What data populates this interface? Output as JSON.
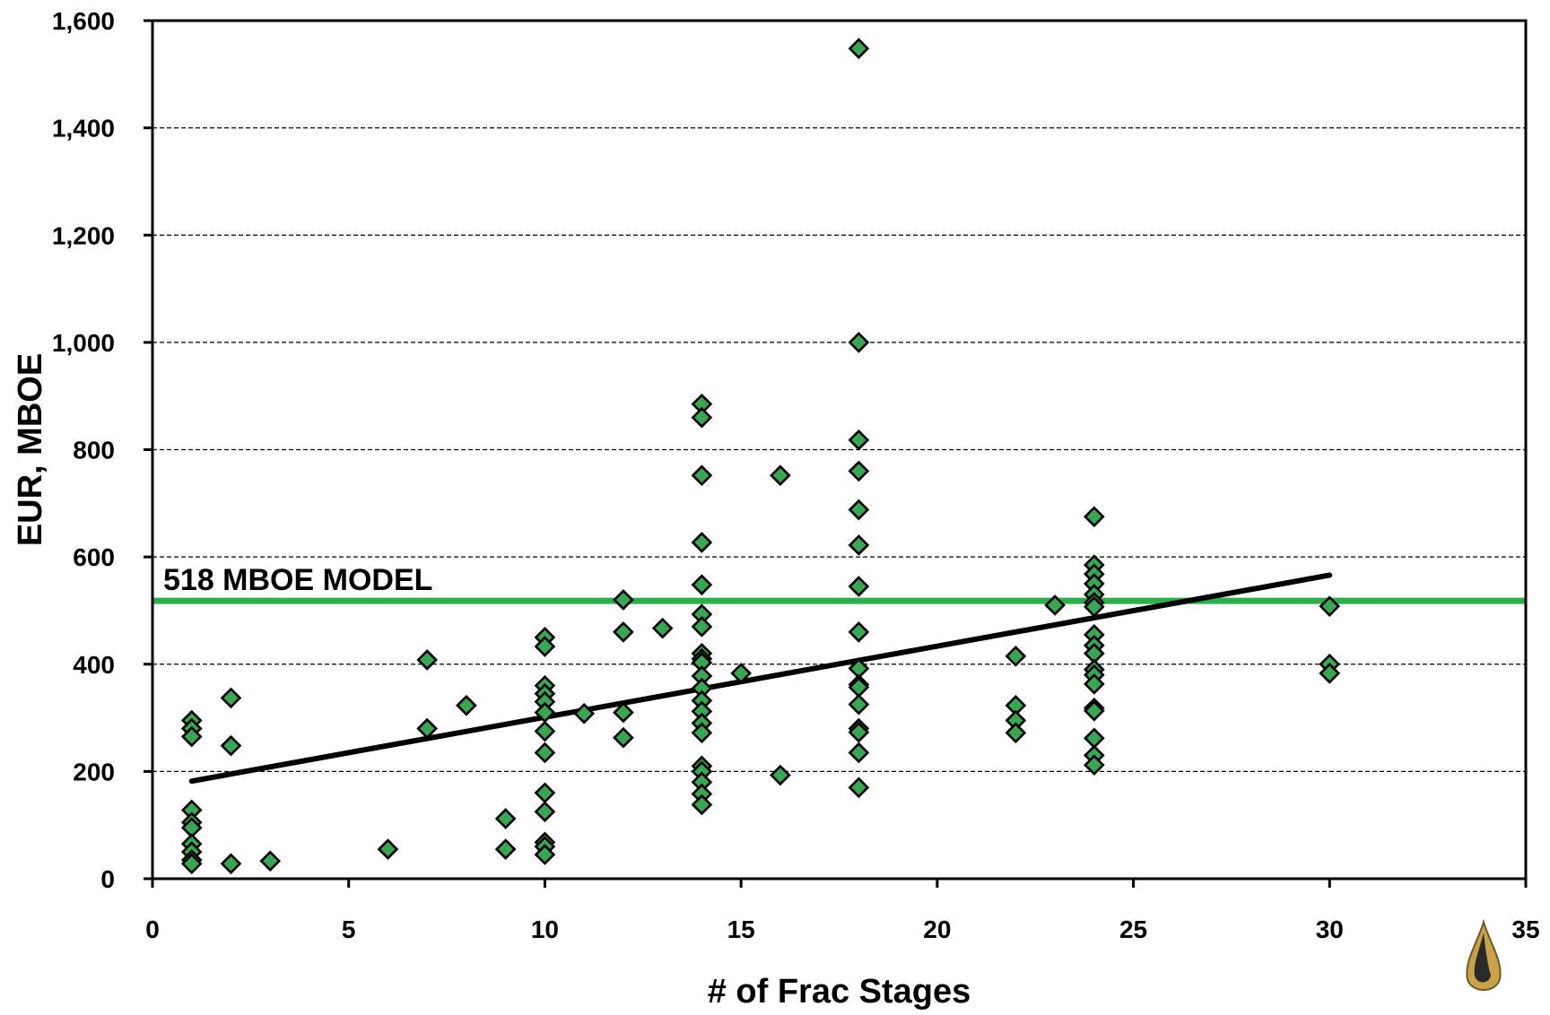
{
  "chart_data": {
    "type": "scatter",
    "title": "",
    "xlabel": "# of Frac Stages",
    "ylabel": "EUR, MBOE",
    "xlim": [
      0,
      35
    ],
    "ylim": [
      0,
      1600
    ],
    "x_ticks": [
      0,
      5,
      10,
      15,
      20,
      25,
      30,
      35
    ],
    "x_tick_labels": [
      "0",
      "5",
      "10",
      "15",
      "20",
      "25",
      "30",
      "35"
    ],
    "y_ticks": [
      0,
      200,
      400,
      600,
      800,
      1000,
      1200,
      1400,
      1600
    ],
    "y_tick_labels": [
      "0",
      "200",
      "400",
      "600",
      "800",
      "1,000",
      "1,200",
      "1,400",
      "1,600"
    ],
    "grid": "horizontal dashed",
    "marker": "diamond",
    "marker_color": "#3aa655",
    "reference_line": {
      "y": 518,
      "label": "518 MBOE MODEL",
      "color": "#2eae4e"
    },
    "trend_line": {
      "x": [
        1,
        30
      ],
      "y": [
        182,
        566
      ],
      "color": "#000000"
    },
    "points": [
      [
        1,
        295
      ],
      [
        1,
        280
      ],
      [
        1,
        265
      ],
      [
        1,
        128
      ],
      [
        1,
        105
      ],
      [
        1,
        95
      ],
      [
        1,
        65
      ],
      [
        1,
        50
      ],
      [
        1,
        35
      ],
      [
        1,
        28
      ],
      [
        2,
        337
      ],
      [
        2,
        248
      ],
      [
        2,
        28
      ],
      [
        3,
        33
      ],
      [
        6,
        55
      ],
      [
        7,
        408
      ],
      [
        7,
        280
      ],
      [
        8,
        323
      ],
      [
        9,
        112
      ],
      [
        9,
        55
      ],
      [
        10,
        450
      ],
      [
        10,
        433
      ],
      [
        10,
        360
      ],
      [
        10,
        345
      ],
      [
        10,
        330
      ],
      [
        10,
        310
      ],
      [
        10,
        275
      ],
      [
        10,
        235
      ],
      [
        10,
        160
      ],
      [
        10,
        125
      ],
      [
        10,
        68
      ],
      [
        10,
        60
      ],
      [
        10,
        45
      ],
      [
        11,
        308
      ],
      [
        12,
        520
      ],
      [
        12,
        460
      ],
      [
        12,
        310
      ],
      [
        12,
        263
      ],
      [
        13,
        467
      ],
      [
        14,
        885
      ],
      [
        14,
        860
      ],
      [
        14,
        752
      ],
      [
        14,
        627
      ],
      [
        14,
        548
      ],
      [
        14,
        493
      ],
      [
        14,
        470
      ],
      [
        14,
        420
      ],
      [
        14,
        410
      ],
      [
        14,
        403
      ],
      [
        14,
        378
      ],
      [
        14,
        355
      ],
      [
        14,
        332
      ],
      [
        14,
        312
      ],
      [
        14,
        290
      ],
      [
        14,
        272
      ],
      [
        14,
        210
      ],
      [
        14,
        200
      ],
      [
        14,
        180
      ],
      [
        14,
        158
      ],
      [
        14,
        138
      ],
      [
        15,
        383
      ],
      [
        16,
        752
      ],
      [
        16,
        193
      ],
      [
        18,
        1548
      ],
      [
        18,
        1000
      ],
      [
        18,
        818
      ],
      [
        18,
        760
      ],
      [
        18,
        688
      ],
      [
        18,
        622
      ],
      [
        18,
        545
      ],
      [
        18,
        460
      ],
      [
        18,
        392
      ],
      [
        18,
        362
      ],
      [
        18,
        357
      ],
      [
        18,
        325
      ],
      [
        18,
        280
      ],
      [
        18,
        273
      ],
      [
        18,
        235
      ],
      [
        18,
        170
      ],
      [
        22,
        415
      ],
      [
        22,
        323
      ],
      [
        22,
        295
      ],
      [
        22,
        272
      ],
      [
        23,
        510
      ],
      [
        24,
        675
      ],
      [
        24,
        585
      ],
      [
        24,
        568
      ],
      [
        24,
        550
      ],
      [
        24,
        530
      ],
      [
        24,
        515
      ],
      [
        24,
        507
      ],
      [
        24,
        455
      ],
      [
        24,
        435
      ],
      [
        24,
        420
      ],
      [
        24,
        390
      ],
      [
        24,
        380
      ],
      [
        24,
        363
      ],
      [
        24,
        318
      ],
      [
        24,
        313
      ],
      [
        24,
        262
      ],
      [
        24,
        230
      ],
      [
        24,
        212
      ],
      [
        30,
        508
      ],
      [
        30,
        400
      ],
      [
        30,
        383
      ]
    ]
  }
}
